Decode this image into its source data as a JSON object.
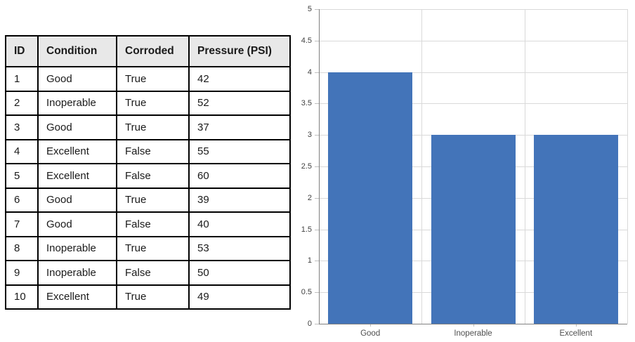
{
  "table": {
    "headers": [
      "ID",
      "Condition",
      "Corroded",
      "Pressure (PSI)"
    ],
    "rows": [
      [
        "1",
        "Good",
        "True",
        "42"
      ],
      [
        "2",
        "Inoperable",
        "True",
        "52"
      ],
      [
        "3",
        "Good",
        "True",
        "37"
      ],
      [
        "4",
        "Excellent",
        "False",
        "55"
      ],
      [
        "5",
        "Excellent",
        "False",
        "60"
      ],
      [
        "6",
        "Good",
        "True",
        "39"
      ],
      [
        "7",
        "Good",
        "False",
        "40"
      ],
      [
        "8",
        "Inoperable",
        "True",
        "53"
      ],
      [
        "9",
        "Inoperable",
        "False",
        "50"
      ],
      [
        "10",
        "Excellent",
        "True",
        "49"
      ]
    ]
  },
  "chart_data": {
    "type": "bar",
    "title": "",
    "xlabel": "",
    "ylabel": "",
    "categories": [
      "Good",
      "Inoperable",
      "Excellent"
    ],
    "values": [
      4,
      3,
      3
    ],
    "ylim": [
      0,
      5
    ],
    "ytick_step": 0.5,
    "yticks": [
      "0",
      "0.5",
      "1",
      "1.5",
      "2",
      "2.5",
      "3",
      "3.5",
      "4",
      "4.5",
      "5"
    ],
    "grid": true,
    "legend_position": "none"
  },
  "colors": {
    "bar_fill": "#4374B9",
    "gridline": "#D9D9D9",
    "axis_line": "#808080",
    "tick_mark": "#BFBFBF",
    "y_label": "#404040",
    "x_label": "#4F4F4F",
    "table_header_bg": "#E8E8E8",
    "table_border": "#000000"
  }
}
